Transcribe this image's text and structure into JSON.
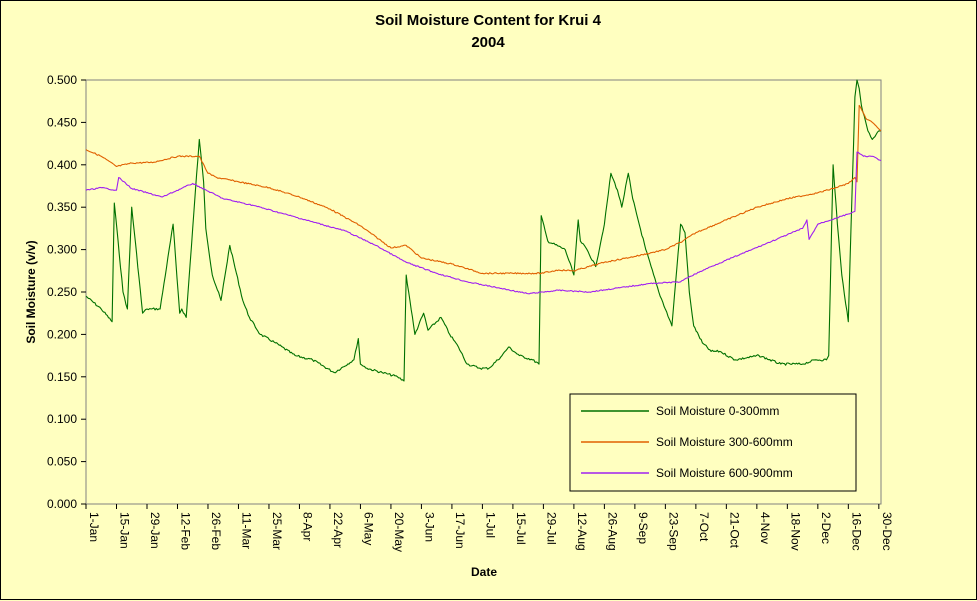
{
  "chart_data": {
    "type": "line",
    "title": "Soil Moisture Content for Krui 4",
    "subtitle": "2004",
    "xlabel": "Date",
    "ylabel": "Soil Moisture (v/v)",
    "ylim": [
      0,
      0.5
    ],
    "yticks": [
      "0.000",
      "0.050",
      "0.100",
      "0.150",
      "0.200",
      "0.250",
      "0.300",
      "0.350",
      "0.400",
      "0.450",
      "0.500"
    ],
    "xlim": [
      "2004-01-01",
      "2004-12-31"
    ],
    "xticks": [
      "1-Jan",
      "15-Jan",
      "29-Jan",
      "12-Feb",
      "26-Feb",
      "11-Mar",
      "25-Mar",
      "8-Apr",
      "22-Apr",
      "6-May",
      "20-May",
      "3-Jun",
      "17-Jun",
      "1-Jul",
      "15-Jul",
      "29-Jul",
      "12-Aug",
      "26-Aug",
      "9-Sep",
      "23-Sep",
      "7-Oct",
      "21-Oct",
      "4-Nov",
      "18-Nov",
      "2-Dec",
      "16-Dec",
      "30-Dec"
    ],
    "grid": false,
    "legend_position": "bottom-right",
    "colors": {
      "plot_background": "#ffffc0",
      "page_background": "#ffffc0"
    },
    "series": [
      {
        "name": "Soil Moisture 0-300mm",
        "color": "#007000",
        "x": [
          "2004-01-01",
          "2004-01-08",
          "2004-01-13",
          "2004-01-14",
          "2004-01-18",
          "2004-01-20",
          "2004-01-22",
          "2004-01-27",
          "2004-01-29",
          "2004-01-31",
          "2004-02-04",
          "2004-02-10",
          "2004-02-13",
          "2004-02-14",
          "2004-02-16",
          "2004-02-22",
          "2004-02-24",
          "2004-02-25",
          "2004-02-28",
          "2004-03-03",
          "2004-03-07",
          "2004-03-13",
          "2004-03-16",
          "2004-03-21",
          "2004-03-28",
          "2004-04-06",
          "2004-04-14",
          "2004-04-24",
          "2004-05-03",
          "2004-05-05",
          "2004-05-06",
          "2004-05-09",
          "2004-05-16",
          "2004-05-23",
          "2004-05-26",
          "2004-05-27",
          "2004-05-31",
          "2004-06-04",
          "2004-06-06",
          "2004-06-12",
          "2004-06-16",
          "2004-06-20",
          "2004-06-24",
          "2004-06-30",
          "2004-07-04",
          "2004-07-10",
          "2004-07-13",
          "2004-07-18",
          "2004-07-24",
          "2004-07-27",
          "2004-07-28",
          "2004-07-31",
          "2004-08-08",
          "2004-08-12",
          "2004-08-14",
          "2004-08-15",
          "2004-08-18",
          "2004-08-22",
          "2004-08-26",
          "2004-08-29",
          "2004-09-01",
          "2004-09-03",
          "2004-09-06",
          "2004-09-08",
          "2004-09-11",
          "2004-09-14",
          "2004-09-20",
          "2004-09-26",
          "2004-09-30",
          "2004-10-02",
          "2004-10-04",
          "2004-10-06",
          "2004-10-10",
          "2004-10-14",
          "2004-10-18",
          "2004-10-25",
          "2004-11-05",
          "2004-11-15",
          "2004-11-25",
          "2004-12-01",
          "2004-12-06",
          "2004-12-07",
          "2004-12-09",
          "2004-12-11",
          "2004-12-13",
          "2004-12-16",
          "2004-12-19",
          "2004-12-20",
          "2004-12-21",
          "2004-12-22",
          "2004-12-24",
          "2004-12-25",
          "2004-12-27",
          "2004-12-30",
          "2004-12-31"
        ],
        "values": [
          0.245,
          0.23,
          0.215,
          0.355,
          0.25,
          0.23,
          0.35,
          0.225,
          0.23,
          0.23,
          0.23,
          0.33,
          0.225,
          0.23,
          0.22,
          0.43,
          0.38,
          0.325,
          0.27,
          0.24,
          0.305,
          0.24,
          0.22,
          0.2,
          0.19,
          0.175,
          0.17,
          0.155,
          0.17,
          0.195,
          0.165,
          0.16,
          0.155,
          0.15,
          0.145,
          0.27,
          0.2,
          0.225,
          0.205,
          0.22,
          0.2,
          0.185,
          0.165,
          0.16,
          0.16,
          0.175,
          0.185,
          0.175,
          0.17,
          0.165,
          0.34,
          0.31,
          0.3,
          0.27,
          0.335,
          0.31,
          0.3,
          0.28,
          0.33,
          0.39,
          0.37,
          0.35,
          0.39,
          0.36,
          0.33,
          0.3,
          0.25,
          0.21,
          0.33,
          0.32,
          0.25,
          0.21,
          0.19,
          0.18,
          0.18,
          0.17,
          0.175,
          0.165,
          0.165,
          0.17,
          0.17,
          0.175,
          0.4,
          0.33,
          0.27,
          0.215,
          0.48,
          0.5,
          0.49,
          0.47,
          0.45,
          0.44,
          0.43,
          0.44,
          0.44
        ]
      },
      {
        "name": "Soil Moisture 300-600mm",
        "color": "#e06000",
        "x": [
          "2004-01-01",
          "2004-01-08",
          "2004-01-15",
          "2004-01-22",
          "2004-02-01",
          "2004-02-12",
          "2004-02-22",
          "2004-02-26",
          "2004-03-01",
          "2004-03-11",
          "2004-03-25",
          "2004-04-08",
          "2004-04-22",
          "2004-05-06",
          "2004-05-20",
          "2004-05-27",
          "2004-06-03",
          "2004-06-17",
          "2004-07-01",
          "2004-07-15",
          "2004-07-28",
          "2004-08-05",
          "2004-08-12",
          "2004-08-26",
          "2004-09-09",
          "2004-09-23",
          "2004-10-01",
          "2004-10-07",
          "2004-10-21",
          "2004-11-04",
          "2004-11-18",
          "2004-12-02",
          "2004-12-09",
          "2004-12-16",
          "2004-12-19",
          "2004-12-20",
          "2004-12-21",
          "2004-12-24",
          "2004-12-27",
          "2004-12-31"
        ],
        "values": [
          0.418,
          0.41,
          0.398,
          0.402,
          0.403,
          0.41,
          0.41,
          0.39,
          0.385,
          0.38,
          0.373,
          0.362,
          0.348,
          0.328,
          0.302,
          0.305,
          0.29,
          0.283,
          0.272,
          0.272,
          0.272,
          0.276,
          0.275,
          0.285,
          0.292,
          0.3,
          0.31,
          0.32,
          0.335,
          0.35,
          0.36,
          0.367,
          0.372,
          0.378,
          0.385,
          0.38,
          0.47,
          0.455,
          0.45,
          0.44
        ]
      },
      {
        "name": "Soil Moisture 600-900mm",
        "color": "#a020f0",
        "x": [
          "2004-01-01",
          "2004-01-08",
          "2004-01-15",
          "2004-01-16",
          "2004-01-22",
          "2004-02-05",
          "2004-02-19",
          "2004-03-04",
          "2004-03-18",
          "2004-04-01",
          "2004-04-15",
          "2004-04-29",
          "2004-05-13",
          "2004-05-27",
          "2004-06-10",
          "2004-06-24",
          "2004-07-08",
          "2004-07-22",
          "2004-08-05",
          "2004-08-19",
          "2004-09-02",
          "2004-09-16",
          "2004-09-30",
          "2004-10-04",
          "2004-10-14",
          "2004-10-28",
          "2004-11-11",
          "2004-11-25",
          "2004-11-27",
          "2004-11-28",
          "2004-12-02",
          "2004-12-16",
          "2004-12-19",
          "2004-12-20",
          "2004-12-23",
          "2004-12-27",
          "2004-12-31"
        ],
        "values": [
          0.37,
          0.373,
          0.37,
          0.385,
          0.372,
          0.362,
          0.378,
          0.36,
          0.352,
          0.342,
          0.332,
          0.322,
          0.305,
          0.285,
          0.272,
          0.262,
          0.255,
          0.248,
          0.252,
          0.25,
          0.255,
          0.26,
          0.262,
          0.268,
          0.28,
          0.295,
          0.31,
          0.325,
          0.335,
          0.312,
          0.33,
          0.342,
          0.345,
          0.415,
          0.41,
          0.41,
          0.405
        ]
      }
    ]
  }
}
